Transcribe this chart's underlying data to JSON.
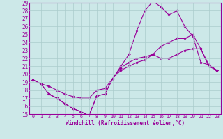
{
  "xlabel": "Windchill (Refroidissement éolien,°C)",
  "background_color": "#cce8e8",
  "line_color": "#990099",
  "grid_color": "#aacccc",
  "xlim": [
    -0.5,
    23.5
  ],
  "ylim": [
    15,
    29
  ],
  "xticks": [
    0,
    1,
    2,
    3,
    4,
    5,
    6,
    7,
    8,
    9,
    10,
    11,
    12,
    13,
    14,
    15,
    16,
    17,
    18,
    19,
    20,
    21,
    22,
    23
  ],
  "yticks": [
    15,
    16,
    17,
    18,
    19,
    20,
    21,
    22,
    23,
    24,
    25,
    26,
    27,
    28,
    29
  ],
  "line1_x": [
    0,
    1,
    2,
    3,
    4,
    5,
    6,
    7,
    8,
    9,
    10,
    11,
    12,
    13,
    14,
    15,
    16,
    17,
    18,
    19,
    20,
    21,
    22,
    23
  ],
  "line1_y": [
    19.3,
    18.8,
    17.5,
    17.0,
    16.3,
    15.7,
    15.3,
    14.8,
    17.3,
    17.5,
    19.5,
    20.8,
    21.5,
    22.0,
    22.2,
    22.5,
    22.0,
    22.0,
    22.5,
    23.0,
    23.2,
    23.2,
    21.2,
    20.5
  ],
  "line2_x": [
    0,
    1,
    2,
    3,
    4,
    5,
    6,
    7,
    8,
    9,
    10,
    11,
    12,
    13,
    14,
    15,
    16,
    17,
    18,
    19,
    20,
    21,
    22,
    23
  ],
  "line2_y": [
    19.3,
    18.8,
    17.5,
    17.0,
    16.3,
    15.7,
    15.3,
    14.8,
    17.3,
    17.5,
    19.5,
    21.0,
    22.5,
    25.5,
    28.0,
    29.2,
    28.5,
    27.5,
    28.0,
    26.0,
    24.8,
    21.5,
    21.2,
    20.5
  ],
  "line3_x": [
    0,
    1,
    2,
    3,
    4,
    5,
    6,
    7,
    8,
    9,
    10,
    11,
    12,
    13,
    14,
    15,
    16,
    17,
    18,
    19,
    20,
    21,
    22,
    23
  ],
  "line3_y": [
    19.3,
    18.8,
    18.5,
    18.0,
    17.5,
    17.2,
    17.0,
    17.0,
    18.0,
    18.2,
    19.5,
    20.5,
    21.0,
    21.5,
    21.8,
    22.5,
    23.5,
    24.0,
    24.5,
    24.5,
    25.0,
    23.2,
    21.0,
    20.5
  ]
}
